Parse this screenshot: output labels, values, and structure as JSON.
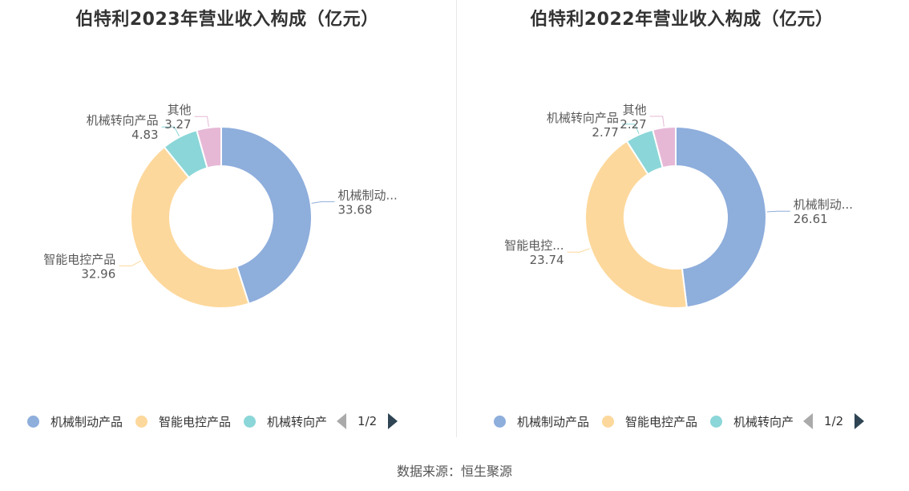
{
  "source_label": "数据来源：恒生聚源",
  "colors": [
    "#8eaedc",
    "#fdd89c",
    "#8bd6d8",
    "#e6b8d6"
  ],
  "legend": {
    "items": [
      "机械制动产品",
      "智能电控产品",
      "机械转向产"
    ],
    "page_indicator": "1/2"
  },
  "chart_data": [
    {
      "type": "pie",
      "title": "伯特利2023年营业收入构成（亿元）",
      "slices": [
        {
          "name": "机械制动产品",
          "label": "机械制动...",
          "value": 33.68,
          "value_text": "33.68"
        },
        {
          "name": "智能电控产品",
          "label": "智能电控产品",
          "value": 32.96,
          "value_text": "32.96"
        },
        {
          "name": "机械转向产品",
          "label": "机械转向产品",
          "value": 4.83,
          "value_text": "4.83"
        },
        {
          "name": "其他",
          "label": "其他",
          "value": 3.27,
          "value_text": "3.27"
        }
      ]
    },
    {
      "type": "pie",
      "title": "伯特利2022年营业收入构成（亿元）",
      "slices": [
        {
          "name": "机械制动产品",
          "label": "机械制动...",
          "value": 26.61,
          "value_text": "26.61"
        },
        {
          "name": "智能电控产品",
          "label": "智能电控...",
          "value": 23.74,
          "value_text": "23.74"
        },
        {
          "name": "机械转向产品",
          "label": "机械转向产品",
          "value": 2.77,
          "value_text": "2.77"
        },
        {
          "name": "其他",
          "label": "其他",
          "value": 2.27,
          "value_text": "2.27"
        }
      ]
    }
  ]
}
